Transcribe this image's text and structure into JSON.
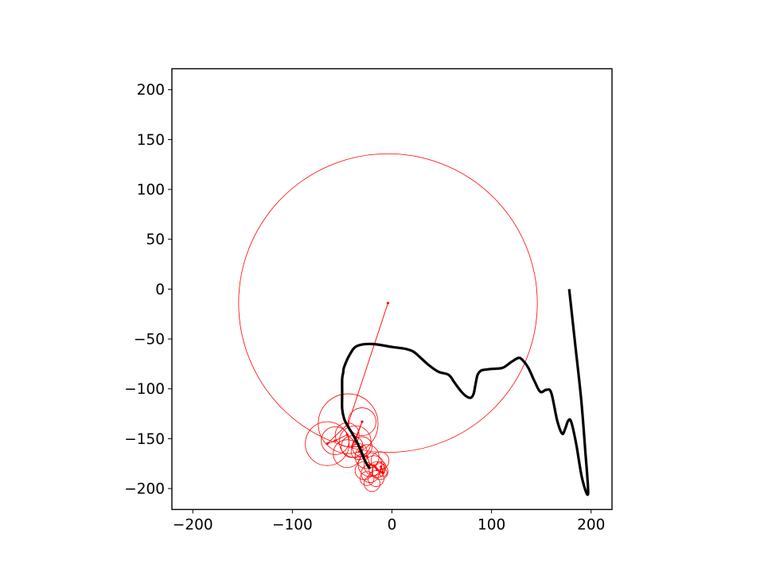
{
  "chart_data": {
    "type": "line",
    "title": "",
    "xlabel": "",
    "ylabel": "",
    "xlim": [
      -221,
      221
    ],
    "ylim": [
      -221,
      221
    ],
    "grid": false,
    "aspect": "equal",
    "x_ticks": [
      -200,
      -100,
      0,
      100,
      200
    ],
    "y_ticks": [
      -200,
      -150,
      -100,
      -50,
      0,
      50,
      100,
      150,
      200
    ],
    "x_tick_labels": [
      "−200",
      "−100",
      "0",
      "100",
      "200"
    ],
    "y_tick_labels": [
      "−200",
      "−150",
      "−100",
      "−50",
      "0",
      "50",
      "100",
      "150",
      "200"
    ],
    "series": [
      {
        "role": "traced-path",
        "color": "#000000",
        "points": [
          [
            178,
            0
          ],
          [
            184,
            -55
          ],
          [
            190,
            -110
          ],
          [
            194,
            -160
          ],
          [
            197,
            -205
          ],
          [
            191,
            -190
          ],
          [
            185,
            -155
          ],
          [
            180,
            -133
          ],
          [
            177,
            -132
          ],
          [
            174,
            -140
          ],
          [
            171,
            -145
          ],
          [
            166,
            -132
          ],
          [
            160,
            -104
          ],
          [
            155,
            -101
          ],
          [
            149,
            -103
          ],
          [
            143,
            -92
          ],
          [
            137,
            -79
          ],
          [
            131,
            -71
          ],
          [
            127,
            -69
          ],
          [
            120,
            -73
          ],
          [
            111,
            -79
          ],
          [
            100,
            -80
          ],
          [
            92,
            -81
          ],
          [
            89,
            -82
          ],
          [
            86,
            -86
          ],
          [
            84,
            -95
          ],
          [
            82,
            -105
          ],
          [
            79,
            -109
          ],
          [
            74,
            -107
          ],
          [
            69,
            -102
          ],
          [
            63,
            -94
          ],
          [
            57,
            -86
          ],
          [
            47,
            -83
          ],
          [
            38,
            -77
          ],
          [
            30,
            -70
          ],
          [
            22,
            -63
          ],
          [
            14,
            -60
          ],
          [
            0,
            -58
          ],
          [
            -20,
            -55
          ],
          [
            -35,
            -57
          ],
          [
            -42,
            -65
          ],
          [
            -48,
            -78
          ],
          [
            -49,
            -84
          ],
          [
            -50,
            -90
          ],
          [
            -50,
            -105
          ],
          [
            -50,
            -120
          ],
          [
            -48,
            -130
          ],
          [
            -44,
            -138
          ],
          [
            -38,
            -148
          ],
          [
            -32,
            -160
          ],
          [
            -28,
            -170
          ],
          [
            -25,
            -176
          ],
          [
            -22,
            -180
          ]
        ]
      }
    ],
    "epicycles": {
      "color": "#ff0000",
      "circles": [
        {
          "cx": -4,
          "cy": -14,
          "r": 150
        },
        {
          "cx": -44,
          "cy": -135,
          "r": 30
        },
        {
          "cx": -65,
          "cy": -155,
          "r": 22
        },
        {
          "cx": -57,
          "cy": -152,
          "r": 14
        },
        {
          "cx": -45,
          "cy": -146,
          "r": 12
        },
        {
          "cx": -37,
          "cy": -153,
          "r": 16
        },
        {
          "cx": -30,
          "cy": -133,
          "r": 14
        },
        {
          "cx": -40,
          "cy": -158,
          "r": 11
        },
        {
          "cx": -30,
          "cy": -158,
          "r": 10
        },
        {
          "cx": -33,
          "cy": -163,
          "r": 8
        },
        {
          "cx": -45,
          "cy": -165,
          "r": 14
        },
        {
          "cx": -25,
          "cy": -168,
          "r": 12
        },
        {
          "cx": -22,
          "cy": -176,
          "r": 12
        },
        {
          "cx": -12,
          "cy": -172,
          "r": 9
        },
        {
          "cx": -18,
          "cy": -177,
          "r": 10
        },
        {
          "cx": -28,
          "cy": -182,
          "r": 9
        },
        {
          "cx": -15,
          "cy": -181,
          "r": 8
        },
        {
          "cx": -22,
          "cy": -185,
          "r": 9
        },
        {
          "cx": -12,
          "cy": -183,
          "r": 8
        },
        {
          "cx": -25,
          "cy": -190,
          "r": 7
        },
        {
          "cx": -16,
          "cy": -190,
          "r": 8
        },
        {
          "cx": -20,
          "cy": -195,
          "r": 8
        },
        {
          "cx": -11,
          "cy": -178,
          "r": 5
        },
        {
          "cx": -9,
          "cy": -184,
          "r": 4
        }
      ],
      "arm": [
        [
          -4,
          -14
        ],
        [
          -44,
          -135
        ],
        [
          -65,
          -155
        ],
        [
          -57,
          -152
        ],
        [
          -45,
          -146
        ],
        [
          -37,
          -153
        ],
        [
          -30,
          -133
        ],
        [
          -40,
          -158
        ],
        [
          -30,
          -158
        ],
        [
          -33,
          -163
        ],
        [
          -25,
          -168
        ],
        [
          -22,
          -176
        ],
        [
          -18,
          -177
        ],
        [
          -15,
          -181
        ],
        [
          -12,
          -183
        ],
        [
          -11,
          -178
        ],
        [
          -9,
          -184
        ]
      ]
    }
  }
}
